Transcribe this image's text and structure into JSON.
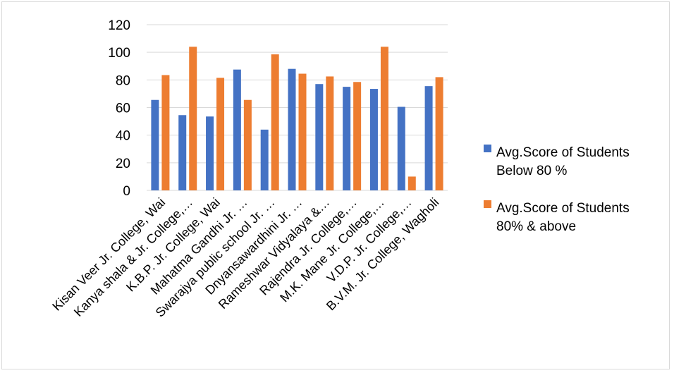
{
  "chart_data": {
    "type": "bar",
    "categories": [
      "Kisan Veer Jr. College, Wai",
      "Kanya shala & Jr. College,…",
      "K.B.P. Jr. College, Wai",
      "Mahatma Gandhi Jr. …",
      "Swarajya public school Jr. …",
      "Dnyansawardhini Jr. …",
      "Rameshwar Vidyalaya &…",
      "Rajendra Jr. College,…",
      "M.K. Mane Jr. College,…",
      "V.D.P. Jr. College,…",
      "B.V.M. Jr. College, Wagholi"
    ],
    "series": [
      {
        "name": "Avg.Score of Students Below 80 %",
        "legend_lines": [
          "Avg.Score of Students",
          "Below 80 %"
        ],
        "color": "#4472c4",
        "values": [
          65.5,
          54.5,
          53.5,
          87.5,
          44,
          88,
          77,
          75,
          73.5,
          60.5,
          75.5
        ]
      },
      {
        "name": "Avg.Score of Students 80% & above",
        "legend_lines": [
          "Avg.Score of Students",
          "80% & above"
        ],
        "color": "#ed7d31",
        "values": [
          83.5,
          104,
          81.5,
          65.5,
          98.5,
          84.5,
          82.5,
          78.5,
          104,
          10,
          82
        ]
      }
    ],
    "ylim": [
      0,
      120
    ],
    "yticks": [
      0,
      20,
      40,
      60,
      80,
      100,
      120
    ],
    "grid": true,
    "legend": "right",
    "title": "",
    "xlabel": "",
    "ylabel": ""
  }
}
